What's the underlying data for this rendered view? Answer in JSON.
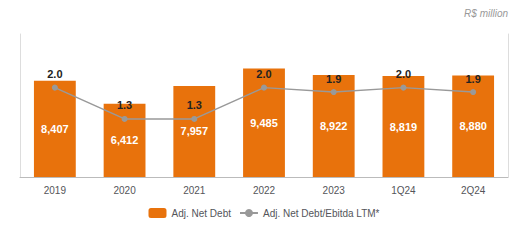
{
  "chart_data": {
    "type": "bar",
    "annotation": "R$ million",
    "categories": [
      "2019",
      "2020",
      "2021",
      "2022",
      "2023",
      "1Q24",
      "2Q24"
    ],
    "series": [
      {
        "name": "Adj. Net Debt",
        "type": "bar",
        "color": "#E8720C",
        "values": [
          8407,
          6412,
          7957,
          9485,
          8922,
          8819,
          8880
        ],
        "value_labels": [
          "8,407",
          "6,412",
          "7,957",
          "9,485",
          "8,922",
          "8,819",
          "8,880"
        ]
      },
      {
        "name": "Adj. Net Debt/Ebitda LTM*",
        "type": "line",
        "axis": "y2",
        "color": "#999999",
        "marker": "circle",
        "values": [
          2.0,
          1.3,
          1.3,
          2.0,
          1.9,
          2.0,
          1.9
        ],
        "value_labels": [
          "2.0",
          "1.3",
          "1.3",
          "2.0",
          "1.9",
          "2.0",
          "1.9"
        ]
      }
    ],
    "ylim": [
      0,
      12500
    ],
    "y2lim": [
      0,
      3.2
    ],
    "data_labels": true,
    "tick_labels": "x",
    "grid": false,
    "legend": "bottom"
  }
}
